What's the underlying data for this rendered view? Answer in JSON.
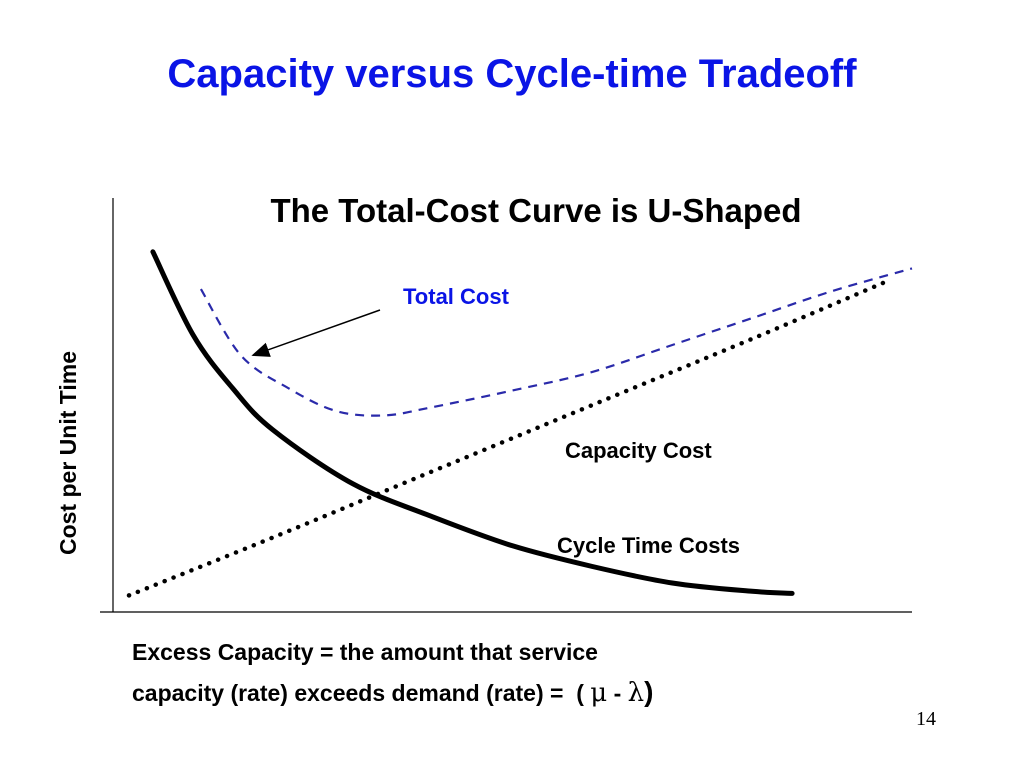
{
  "slide": {
    "title": "Capacity versus Cycle-time Tradeoff",
    "caption_line1": "Excess Capacity = the amount that service",
    "caption_line2_prefix": "capacity (rate) exceeds demand (rate) =  ( ",
    "mu": "μ",
    "minus": " - ",
    "lambda": "λ",
    "close_paren": ")",
    "page_number": "14"
  },
  "chart_data": {
    "type": "line",
    "title": "The Total-Cost Curve is U-Shaped",
    "xlabel": "",
    "ylabel": "Cost per Unit Time",
    "xlim": [
      0,
      10
    ],
    "ylim": [
      0,
      10
    ],
    "grid": false,
    "legend": "none",
    "series": [
      {
        "name": "Cycle Time Costs",
        "style": "solid",
        "color": "#000000",
        "x": [
          0.5,
          1.0,
          1.5,
          2.0,
          3.0,
          4.0,
          5.0,
          6.0,
          7.0,
          8.0,
          8.5
        ],
        "y": [
          8.7,
          6.7,
          5.4,
          4.4,
          3.1,
          2.3,
          1.6,
          1.1,
          0.7,
          0.5,
          0.45
        ]
      },
      {
        "name": "Capacity Cost",
        "style": "dotted",
        "color": "#000000",
        "x": [
          0.2,
          2.0,
          4.0,
          6.0,
          8.0,
          9.7
        ],
        "y": [
          0.4,
          1.8,
          3.4,
          5.0,
          6.6,
          8.0
        ]
      },
      {
        "name": "Total Cost",
        "style": "dashed",
        "color": "#2a2aaa",
        "x": [
          1.1,
          1.6,
          2.2,
          2.8,
          3.4,
          4.0,
          5.0,
          6.0,
          7.0,
          8.0,
          9.0,
          10.0
        ],
        "y": [
          7.8,
          6.2,
          5.4,
          4.85,
          4.75,
          4.95,
          5.35,
          5.8,
          6.45,
          7.1,
          7.75,
          8.3
        ]
      }
    ],
    "annotations": [
      {
        "text": "Total Cost",
        "color": "#0a14e6",
        "arrow_to": {
          "x": 1.75,
          "y": 6.2
        }
      }
    ]
  }
}
